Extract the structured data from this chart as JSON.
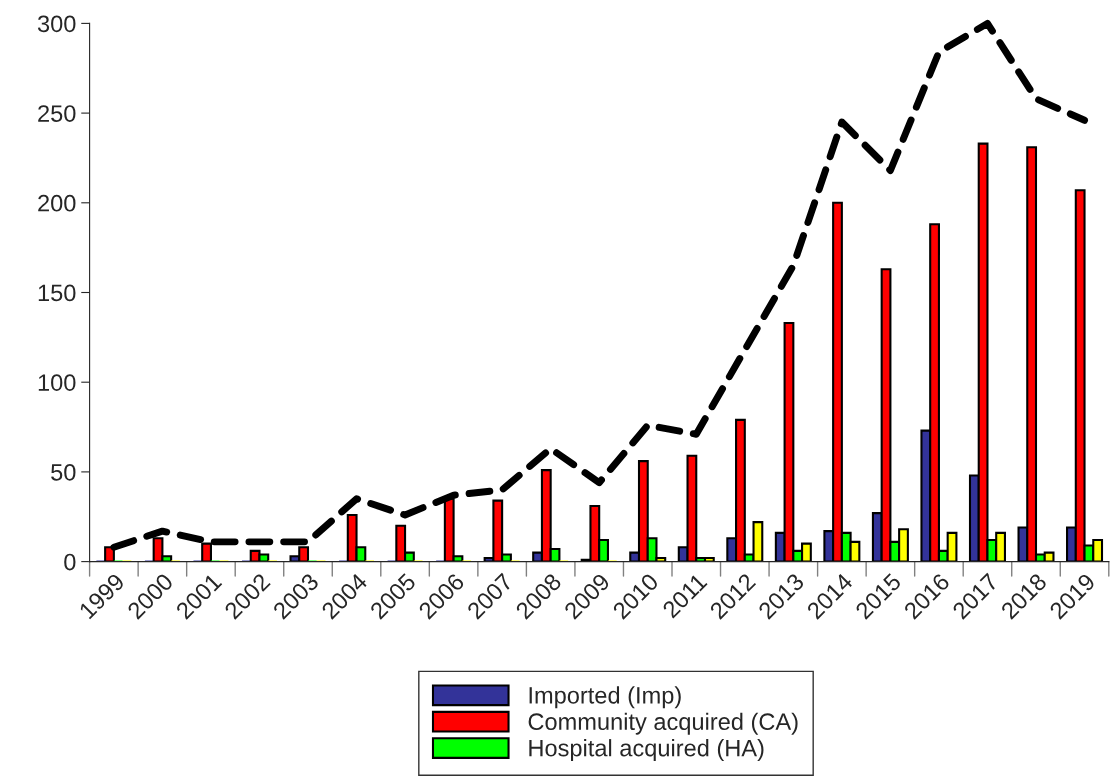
{
  "chart_data": {
    "type": "bar",
    "categories": [
      "1999",
      "2000",
      "2001",
      "2002",
      "2003",
      "2004",
      "2005",
      "2006",
      "2007",
      "2008",
      "2009",
      "2010",
      "2011",
      "2012",
      "2013",
      "2014",
      "2015",
      "2016",
      "2017",
      "2018",
      "2019"
    ],
    "series": [
      {
        "name": "Imported (Imp)",
        "color": "#333399",
        "values": [
          0,
          0,
          0,
          0,
          3,
          0,
          0,
          0,
          2,
          5,
          1,
          5,
          8,
          13,
          16,
          17,
          27,
          73,
          48,
          19,
          19
        ]
      },
      {
        "name": "Community acquired (CA)",
        "color": "#ff0000",
        "values": [
          8,
          13,
          10,
          6,
          8,
          26,
          20,
          35,
          34,
          51,
          31,
          56,
          59,
          79,
          133,
          200,
          163,
          188,
          233,
          231,
          207
        ]
      },
      {
        "name": "Hospital acquired (HA)",
        "color": "#00ff00",
        "values": [
          0,
          3,
          0,
          4,
          0,
          8,
          5,
          3,
          4,
          7,
          12,
          13,
          2,
          4,
          6,
          16,
          11,
          6,
          12,
          4,
          9
        ]
      },
      {
        "color": "#ffff00",
        "values": [
          0,
          0,
          0,
          0,
          0,
          0,
          0,
          0,
          0,
          0,
          0,
          2,
          2,
          22,
          10,
          11,
          18,
          16,
          16,
          5,
          12
        ]
      },
      {
        "type": "line",
        "color": "#000000",
        "line_style": "dashed",
        "values": [
          8,
          17,
          11,
          11,
          11,
          35,
          26,
          37,
          40,
          63,
          44,
          76,
          71,
          118,
          165,
          245,
          218,
          284,
          300,
          258,
          246
        ]
      }
    ],
    "ylim": [
      0,
      300
    ],
    "yticks": [
      0,
      50,
      100,
      150,
      200,
      250,
      300
    ],
    "grid": false,
    "legend": "bottom"
  }
}
